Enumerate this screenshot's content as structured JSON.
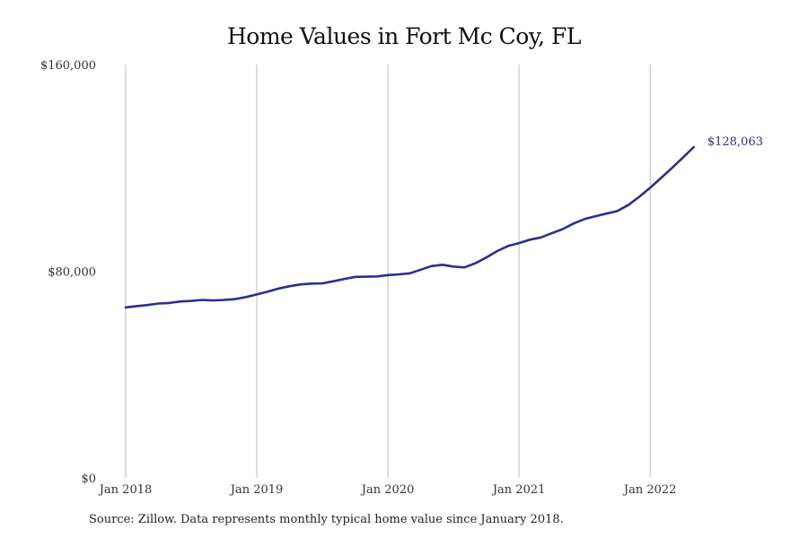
{
  "chart_data": {
    "type": "line",
    "title": "Home Values in Fort Mc Coy, FL",
    "xlabel": "",
    "ylabel": "",
    "ylim": [
      0,
      160000
    ],
    "y_ticks": [
      {
        "value": 0,
        "label": "$0"
      },
      {
        "value": 80000,
        "label": "$80,000"
      },
      {
        "value": 160000,
        "label": "$160,000"
      }
    ],
    "x_ticks": [
      {
        "month_index": 0,
        "label": "Jan 2018"
      },
      {
        "month_index": 12,
        "label": "Jan 2019"
      },
      {
        "month_index": 24,
        "label": "Jan 2020"
      },
      {
        "month_index": 36,
        "label": "Jan 2021"
      },
      {
        "month_index": 48,
        "label": "Jan 2022"
      }
    ],
    "x_range": [
      0,
      62
    ],
    "grid": "vertical",
    "series": [
      {
        "name": "Typical home value",
        "color": "#2e2e8f",
        "start": "Jan 2018",
        "values": [
          66000,
          66500,
          66900,
          67500,
          67700,
          68300,
          68500,
          68900,
          68700,
          68900,
          69200,
          70000,
          71000,
          72100,
          73300,
          74200,
          74900,
          75200,
          75300,
          76100,
          77000,
          77800,
          77900,
          78000,
          78500,
          78800,
          79200,
          80600,
          82000,
          82500,
          81800,
          81500,
          83100,
          85300,
          87800,
          89800,
          90900,
          92200,
          93100,
          94700,
          96300,
          98500,
          100200,
          101300,
          102300,
          103300,
          105600,
          108800,
          112300,
          116100,
          120000,
          124000,
          128063
        ]
      }
    ],
    "end_label": "$128,063"
  },
  "source_note": "Source: Zillow. Data represents monthly typical home value since January 2018."
}
